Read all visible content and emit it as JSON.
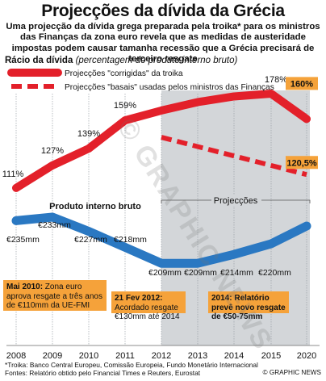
{
  "title": "Projecções da dívida da Grécia",
  "subtitle": "Uma projecção da dívida grega preparada pela troika* para os ministros das Finanças da zona euro revela que as medidas de austeridade impostas podem causar tamanha recessão que a Grécia precisará de terceiro resgate",
  "ylabel_bold": "Rácio da dívida",
  "ylabel_italic": "(percentagem do produto interno bruto)",
  "watermark": "© GRAPHIC NEWS",
  "footnote_line1": "*Troika: Banco Central Europeu, Comissão Europeia, Fundo Monetário Internacional",
  "footnote_line2": "Fontes: Relatório obtido pelo Financial Times e Reuters, Eurostat",
  "credit": "© GRAPHIC NEWS",
  "colors": {
    "red": "#e3202a",
    "blue": "#2a78c2",
    "orange": "#f5a23a",
    "gray_bg": "#d3d6d9"
  },
  "chart_data": {
    "type": "line",
    "x": [
      2008,
      2009,
      2010,
      2011,
      2012,
      2013,
      2014,
      2015,
      2020
    ],
    "x_tick_labels": [
      "2008",
      "2009",
      "2010",
      "2011",
      "2012",
      "2013",
      "2014",
      "2015",
      "2020"
    ],
    "projection_label": "Projecções",
    "series": [
      {
        "name": "Projecções \"corrigidas\" da troika",
        "role": "debt_ratio",
        "style": "solid",
        "points": [
          [
            2008,
            111
          ],
          [
            2009,
            127
          ],
          [
            2010,
            139
          ],
          [
            2011,
            159
          ],
          [
            2012,
            166
          ],
          [
            2013,
            172
          ],
          [
            2014,
            176
          ],
          [
            2015,
            178
          ],
          [
            2020,
            160
          ]
        ],
        "labels": [
          [
            "2008",
            "111%"
          ],
          [
            "2009",
            "127%"
          ],
          [
            "2010",
            "139%"
          ],
          [
            "2011",
            "159%"
          ],
          [
            "2015",
            "178%"
          ],
          [
            "2020",
            "160%"
          ]
        ]
      },
      {
        "name": "Projecções \"basais\" usadas pelos ministros das Finanças",
        "role": "debt_ratio",
        "style": "dashed",
        "points": [
          [
            2012,
            147
          ],
          [
            2020,
            120.5
          ]
        ],
        "labels": [
          [
            "2020",
            "120,5%"
          ]
        ]
      },
      {
        "name": "Produto interno bruto",
        "role": "gdp",
        "style": "solid",
        "points": [
          [
            2008,
            233
          ],
          [
            2009,
            235
          ],
          [
            2010,
            227
          ],
          [
            2011,
            218
          ],
          [
            2012,
            209
          ],
          [
            2013,
            209
          ],
          [
            2014,
            214
          ],
          [
            2015,
            220
          ],
          [
            2020,
            230
          ]
        ],
        "value_labels": [
          "€233mm",
          "€235mm",
          "€227mm",
          "€218mm",
          "€209mm",
          "€209mm",
          "€214mm",
          "€220mm"
        ]
      }
    ]
  },
  "annotations": [
    {
      "bold": "Mai 2010:",
      "text": " Zona euro aprova resgate a três anos de €110mm da UE-FMI"
    },
    {
      "bold": "21 Fev 2012:",
      "text": " Acordado resgate €130mm até 2014"
    },
    {
      "bold": "2014: Relatório prevê novo resgate de €50-75mm",
      "text": ""
    }
  ]
}
